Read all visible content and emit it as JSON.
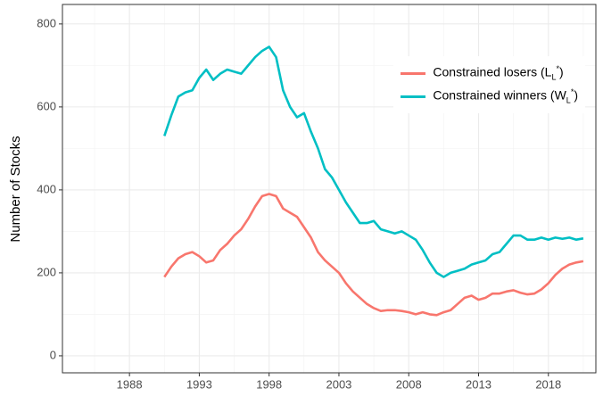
{
  "chart_data": {
    "type": "line",
    "y_label": "Number of Stocks",
    "x": [
      1990.5,
      1991,
      1991.5,
      1992,
      1992.5,
      1993,
      1993.5,
      1994,
      1994.5,
      1995,
      1995.5,
      1996,
      1996.5,
      1997,
      1997.5,
      1998,
      1998.5,
      1999,
      1999.5,
      2000,
      2000.5,
      2001,
      2001.5,
      2002,
      2002.5,
      2003,
      2003.5,
      2004,
      2004.5,
      2005,
      2005.5,
      2006,
      2006.5,
      2007,
      2007.5,
      2008,
      2008.5,
      2009,
      2009.5,
      2010,
      2010.5,
      2011,
      2011.5,
      2012,
      2012.5,
      2013,
      2013.5,
      2014,
      2014.5,
      2015,
      2015.5,
      2016,
      2016.5,
      2017,
      2017.5,
      2018,
      2018.5,
      2019,
      2019.5,
      2020,
      2020.5
    ],
    "series": [
      {
        "name": "Constrained losers (L<sub>L</sub><sup>*</sup>)",
        "color": "#F8766D",
        "values": [
          190,
          215,
          235,
          245,
          250,
          240,
          225,
          230,
          255,
          270,
          290,
          305,
          330,
          360,
          385,
          390,
          385,
          355,
          345,
          335,
          310,
          285,
          250,
          230,
          215,
          200,
          175,
          155,
          140,
          125,
          115,
          108,
          110,
          110,
          108,
          105,
          100,
          105,
          100,
          98,
          105,
          110,
          125,
          140,
          145,
          135,
          140,
          150,
          150,
          155,
          158,
          152,
          148,
          150,
          160,
          175,
          195,
          210,
          220,
          225,
          228
        ]
      },
      {
        "name": "Constrained winners (W<sub>L</sub><sup>*</sup>)",
        "color": "#00BFC4",
        "values": [
          530,
          580,
          625,
          635,
          640,
          670,
          690,
          665,
          680,
          690,
          685,
          680,
          700,
          720,
          735,
          745,
          720,
          640,
          600,
          575,
          585,
          540,
          500,
          450,
          430,
          400,
          370,
          345,
          320,
          320,
          325,
          305,
          300,
          295,
          300,
          290,
          280,
          255,
          225,
          200,
          190,
          200,
          205,
          210,
          220,
          225,
          230,
          245,
          250,
          270,
          290,
          290,
          280,
          280,
          285,
          280,
          285,
          282,
          285,
          280,
          283
        ]
      }
    ],
    "xlim": [
      1983.2,
      2021.4
    ],
    "ylim": [
      -41,
      847
    ],
    "xticks": [
      1988,
      1993,
      1998,
      2003,
      2008,
      2013,
      2018
    ],
    "yticks": [
      0,
      200,
      400,
      600,
      800
    ],
    "grid": true,
    "legend_position": "top-right"
  }
}
